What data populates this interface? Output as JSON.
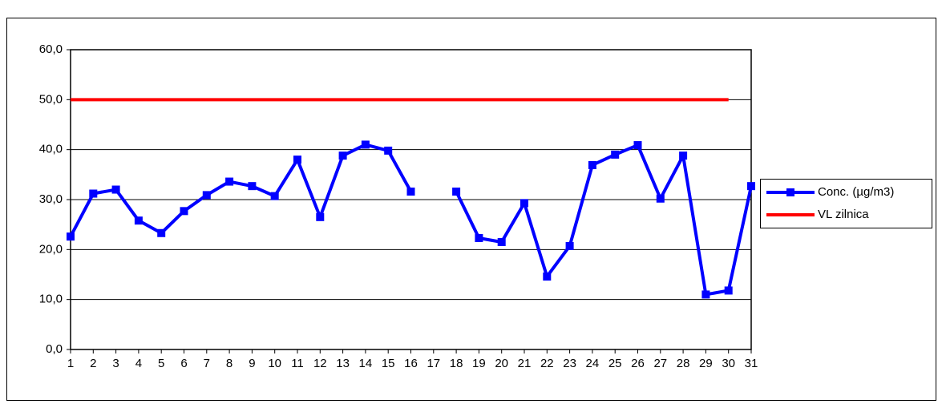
{
  "chart_data": {
    "type": "line",
    "categories": [
      "1",
      "2",
      "3",
      "4",
      "5",
      "6",
      "7",
      "8",
      "9",
      "10",
      "11",
      "12",
      "13",
      "14",
      "15",
      "16",
      "17",
      "18",
      "19",
      "20",
      "21",
      "22",
      "23",
      "24",
      "25",
      "26",
      "27",
      "28",
      "29",
      "30",
      "31"
    ],
    "series": [
      {
        "name": "Conc. (µg/m3)",
        "color": "#0000ff",
        "marker": "square",
        "values": [
          22.6,
          31.2,
          32.0,
          25.8,
          23.3,
          27.7,
          30.9,
          33.6,
          32.7,
          30.7,
          38.0,
          26.5,
          38.8,
          41.0,
          39.8,
          31.6,
          null,
          31.6,
          22.3,
          21.5,
          29.3,
          14.6,
          20.7,
          36.9,
          39.0,
          40.9,
          30.2,
          38.8,
          11.0,
          11.8,
          32.7
        ]
      },
      {
        "name": "VL zilnica",
        "color": "#ff0000",
        "values": [
          50,
          50,
          50,
          50,
          50,
          50,
          50,
          50,
          50,
          50,
          50,
          50,
          50,
          50,
          50,
          50,
          50,
          50,
          50,
          50,
          50,
          50,
          50,
          50,
          50,
          50,
          50,
          50,
          50,
          50,
          null
        ]
      }
    ],
    "ylim": [
      0,
      60
    ],
    "yticks": [
      {
        "value": 0,
        "label": "0,0"
      },
      {
        "value": 10,
        "label": "10,0"
      },
      {
        "value": 20,
        "label": "20,0"
      },
      {
        "value": 30,
        "label": "30,0"
      },
      {
        "value": 40,
        "label": "40,0"
      },
      {
        "value": 50,
        "label": "50,0"
      },
      {
        "value": 60,
        "label": "60,0"
      }
    ],
    "grid": true,
    "legend": "right"
  }
}
